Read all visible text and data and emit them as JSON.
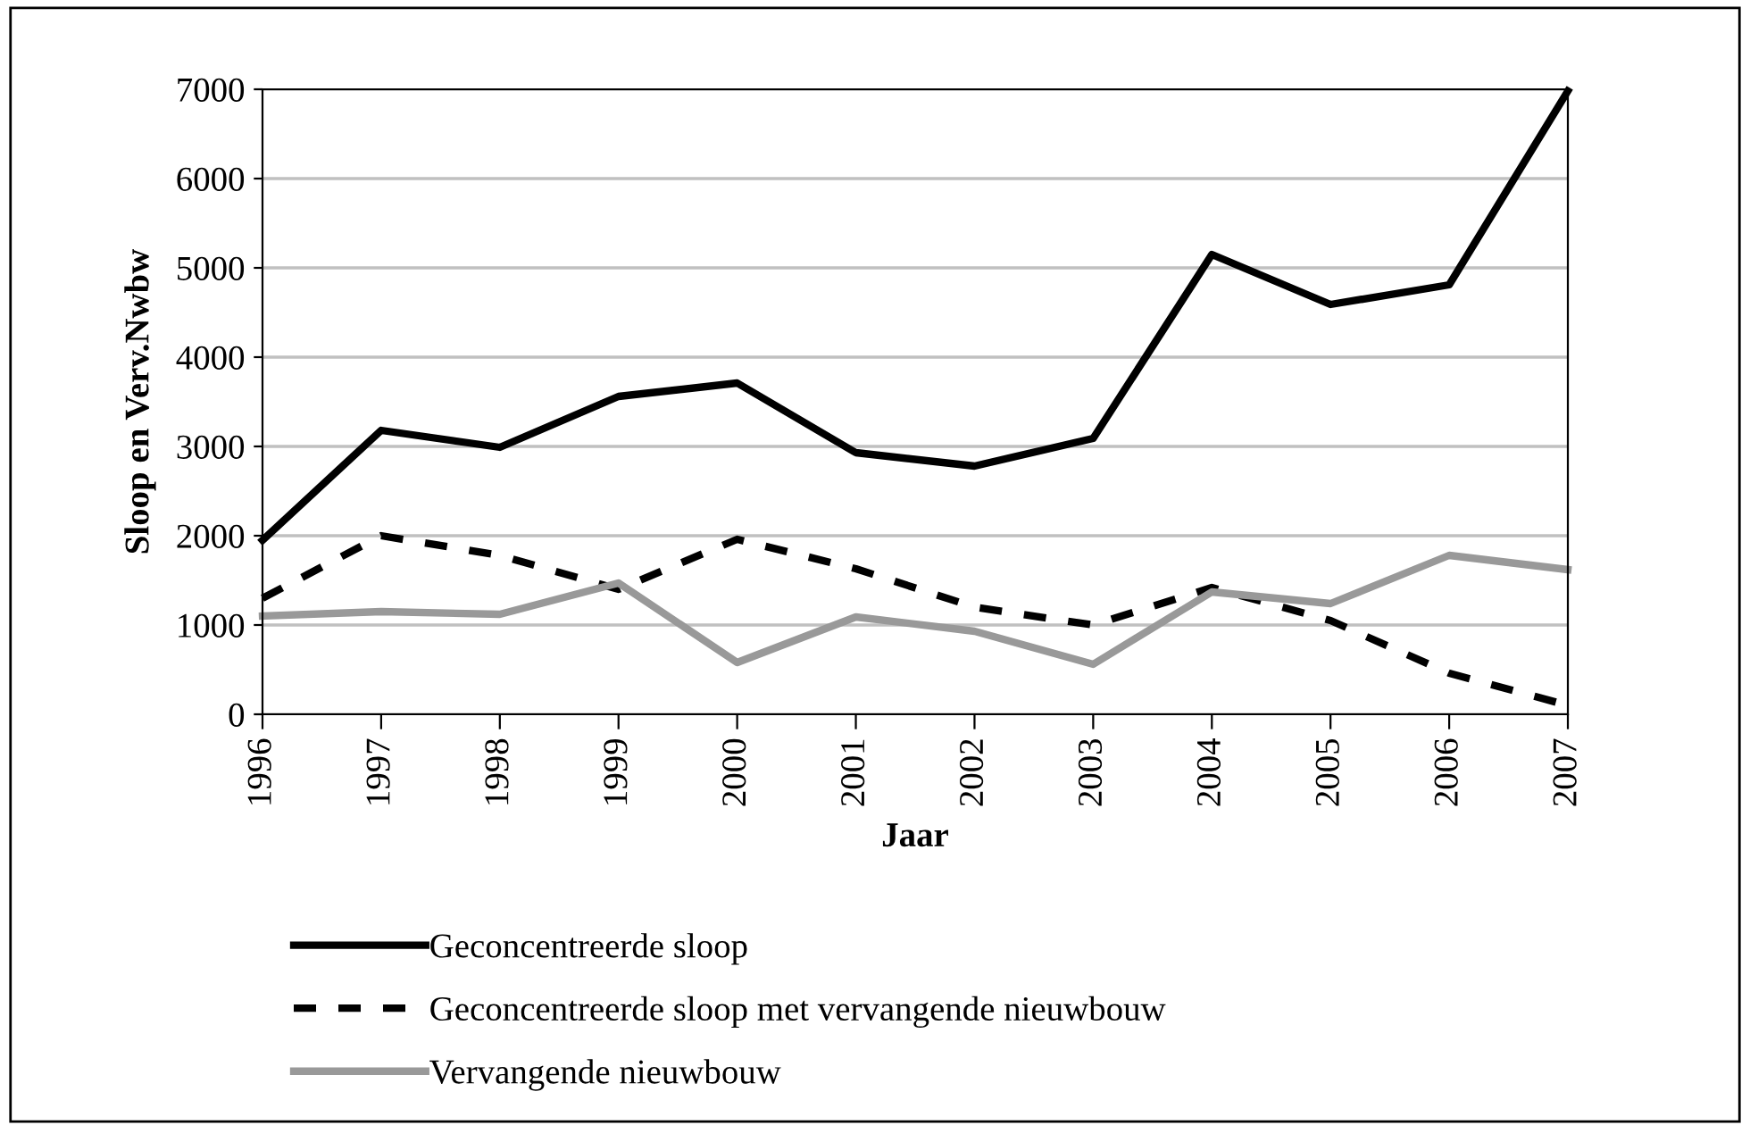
{
  "chart_data": {
    "type": "line",
    "xlabel": "Jaar",
    "ylabel": "Sloop en Verv.Nwbw",
    "categories": [
      "1996",
      "1997",
      "1998",
      "1999",
      "2000",
      "2001",
      "2002",
      "2003",
      "2004",
      "2005",
      "2006",
      "2007"
    ],
    "series": [
      {
        "name": "Geconcentreerde sloop",
        "color": "#000000",
        "line_style": "solid",
        "values": [
          1950,
          3180,
          2990,
          3560,
          3710,
          2930,
          2780,
          3090,
          5150,
          4590,
          4810,
          6980
        ]
      },
      {
        "name": "Geconcentreerde sloop met vervangende nieuwbouw",
        "color": "#000000",
        "line_style": "dashed",
        "values": [
          1300,
          2000,
          1780,
          1400,
          1960,
          1630,
          1200,
          1000,
          1420,
          1050,
          460,
          100
        ]
      },
      {
        "name": "Vervangende nieuwbouw",
        "color": "#999999",
        "line_style": "solid",
        "values": [
          1100,
          1150,
          1120,
          1470,
          580,
          1090,
          930,
          560,
          1370,
          1240,
          1780,
          1620
        ]
      }
    ],
    "ylim": [
      0,
      7000
    ],
    "yticks": [
      0,
      1000,
      2000,
      3000,
      4000,
      5000,
      6000,
      7000
    ],
    "grid": "y",
    "legend": "bottom"
  }
}
